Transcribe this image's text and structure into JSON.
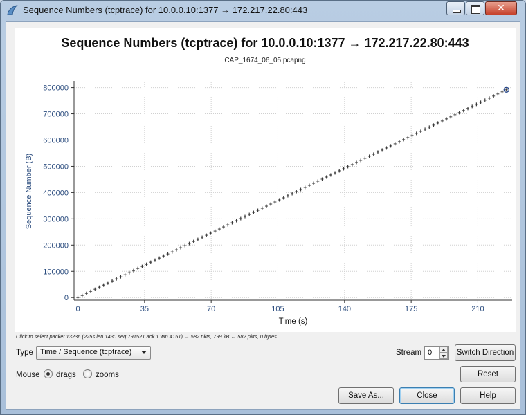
{
  "window": {
    "title": "Sequence Numbers (tcptrace) for 10.0.0.10:1377 → 172.217.22.80:443",
    "icon": "wireshark-fin-icon",
    "controls": [
      "minimize-icon",
      "maximize-icon",
      "close-icon"
    ]
  },
  "plot": {
    "title": "Sequence Numbers (tcptrace) for 10.0.0.10:1377 → 172.217.22.80:443",
    "subtitle": "CAP_1674_06_05.pcapng",
    "hint": "Click to select packet 13236 (225s len 1430 seq 791521 ack 1 win 4151) → 582 pkts, 799 kB ← 582 pkts, 0 bytes"
  },
  "chart_data": {
    "type": "scatter",
    "xlabel": "Time (s)",
    "ylabel": "Sequence Number (B)",
    "xlim": [
      -2,
      228
    ],
    "ylim": [
      -10000,
      820000
    ],
    "xticks": [
      0,
      35,
      70,
      105,
      140,
      175,
      210
    ],
    "yticks": [
      0,
      100000,
      200000,
      300000,
      400000,
      500000,
      600000,
      700000,
      800000
    ],
    "series": [
      {
        "x_start": 0,
        "x_end": 225,
        "y_start": 0,
        "y_end": 791521,
        "points": 582,
        "style": "tcptrace-segments"
      }
    ],
    "selected_point": {
      "x": 225,
      "y": 791521
    },
    "grid": true,
    "colors": {
      "axis_text": "#2b4c7e",
      "markers": "#3a3a3a",
      "grid": "#d0d0d0",
      "selected": "#1c3f87"
    }
  },
  "controls": {
    "type_label": "Type",
    "type_value": "Time / Sequence (tcptrace)",
    "stream_label": "Stream",
    "stream_value": "0",
    "switch_direction": "Switch Direction",
    "reset": "Reset",
    "mouse_label": "Mouse",
    "drags_label": "drags",
    "zooms_label": "zooms",
    "save_as": "Save As...",
    "close": "Close",
    "help": "Help"
  }
}
